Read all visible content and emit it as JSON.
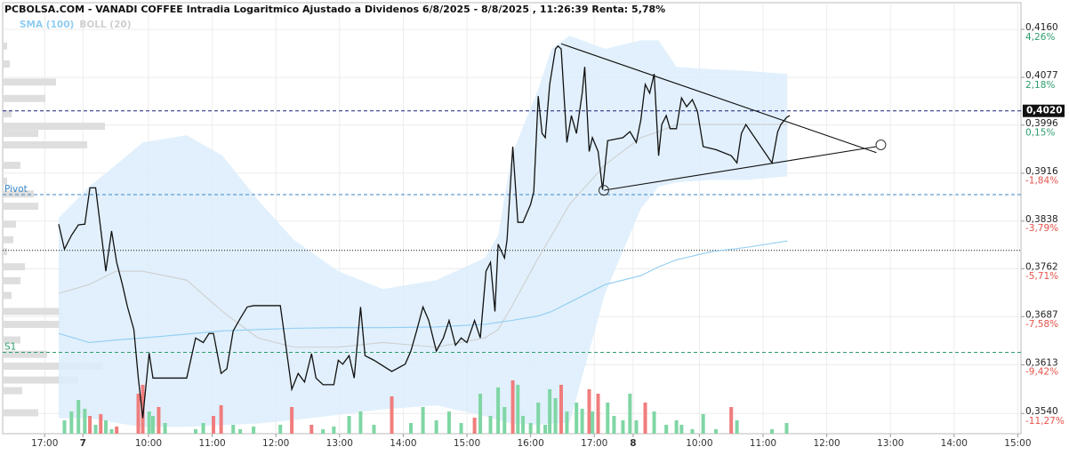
{
  "chart_data": {
    "type": "line",
    "title": "PCBOLSA.COM - VANADI COFFEE Intradia Logaritmico Ajustado a Dividenos 6/8/2025 - 8/8/2025 , 11:26:39 Renta: 5,78%",
    "log_scale": true,
    "grid": true,
    "xlim": [
      -0.66,
      15.33
    ],
    "xticks": [
      {
        "value": 0,
        "label": "17:00"
      },
      {
        "value": 0.6,
        "label": "7"
      },
      {
        "value": 1.63,
        "label": "10:00"
      },
      {
        "value": 2.63,
        "label": "11:00"
      },
      {
        "value": 3.63,
        "label": "12:00"
      },
      {
        "value": 4.63,
        "label": "13:00"
      },
      {
        "value": 5.63,
        "label": "14:00"
      },
      {
        "value": 6.63,
        "label": "15:00"
      },
      {
        "value": 7.63,
        "label": "16:00"
      },
      {
        "value": 8.63,
        "label": "17:00"
      },
      {
        "value": 9.24,
        "label": "8"
      },
      {
        "value": 10.28,
        "label": "10:00"
      },
      {
        "value": 11.28,
        "label": "11:00"
      },
      {
        "value": 12.28,
        "label": "12:00"
      },
      {
        "value": 13.28,
        "label": "13:00"
      },
      {
        "value": 14.28,
        "label": "14:00"
      },
      {
        "value": 15.28,
        "label": "15:00"
      }
    ],
    "ylim": [
      0.351,
      0.4207
    ],
    "yticks": [
      {
        "value": 0.416,
        "label": "0,4160"
      },
      {
        "value": 0.4077,
        "label": "0,4077"
      },
      {
        "value": 0.3996,
        "label": "0,3996"
      },
      {
        "value": 0.3916,
        "label": "0,3916"
      },
      {
        "value": 0.3838,
        "label": "0,3838"
      },
      {
        "value": 0.3762,
        "label": "0,3762"
      },
      {
        "value": 0.3687,
        "label": "0,3687"
      },
      {
        "value": 0.3613,
        "label": "0,3613"
      },
      {
        "value": 0.354,
        "label": "0,3540"
      }
    ],
    "y2lim": [
      -12.03,
      5.43
    ],
    "y2ticks": [
      {
        "value": 4.26,
        "label": "4,26%"
      },
      {
        "value": 2.18,
        "label": "2,18%"
      },
      {
        "value": 0.15,
        "label": "0,15%"
      },
      {
        "value": -1.84,
        "label": "-1,84%"
      },
      {
        "value": -3.79,
        "label": "-3,79%"
      },
      {
        "value": -5.71,
        "label": "-5,71%"
      },
      {
        "value": -7.58,
        "label": "-7,58%"
      },
      {
        "value": -9.42,
        "label": "-9,42%"
      },
      {
        "value": -11.27,
        "label": "-11,27%"
      }
    ],
    "y2_colors": {
      "up": "#2e9e6b",
      "down": "#e5534b"
    },
    "series": [
      {
        "color": "#111111",
        "x": [
          0.22,
          0.31,
          0.42,
          0.53,
          0.63,
          0.71,
          0.8,
          0.88,
          0.96,
          1.05,
          1.13,
          1.22,
          1.3,
          1.4,
          1.47,
          1.54,
          1.64,
          1.7,
          1.89,
          2.23,
          2.37,
          2.49,
          2.58,
          2.65,
          2.77,
          2.86,
          2.96,
          3.07,
          3.18,
          3.28,
          3.7,
          3.77,
          3.88,
          3.98,
          4.08,
          4.19,
          4.26,
          4.37,
          4.54,
          4.61,
          4.68,
          4.78,
          4.86,
          4.96,
          5.03,
          5.17,
          5.45,
          5.66,
          5.75,
          5.84,
          5.94,
          6.03,
          6.15,
          6.26,
          6.35,
          6.45,
          6.54,
          6.63,
          6.75,
          6.84,
          6.93,
          7.0,
          7.07,
          7.12,
          7.22,
          7.26,
          7.35,
          7.43,
          7.51,
          7.63,
          7.68,
          7.75,
          7.81,
          7.86,
          7.93,
          8.02,
          8.06,
          8.11,
          8.2,
          8.27,
          8.35,
          8.44,
          8.48,
          8.55,
          8.6,
          8.69,
          8.76,
          8.84,
          9.08,
          9.19,
          9.29,
          9.36,
          9.43,
          9.5,
          9.57,
          9.64,
          9.69,
          9.76,
          9.82,
          9.92,
          10.0,
          10.08,
          10.17,
          10.25,
          10.34,
          10.54,
          10.78,
          10.87,
          10.94,
          11.01,
          11.42,
          11.51,
          11.56,
          11.65,
          11.7
        ],
        "values": [
          0.3833,
          0.3793,
          0.3815,
          0.3832,
          0.3833,
          0.3892,
          0.3892,
          0.3825,
          0.3758,
          0.3822,
          0.3772,
          0.3737,
          0.3702,
          0.3667,
          0.3593,
          0.3533,
          0.3631,
          0.3593,
          0.3593,
          0.3593,
          0.3654,
          0.3647,
          0.3661,
          0.3661,
          0.36,
          0.3607,
          0.3665,
          0.3684,
          0.3702,
          0.3704,
          0.3704,
          0.3654,
          0.3576,
          0.36,
          0.3587,
          0.363,
          0.3593,
          0.3583,
          0.3583,
          0.362,
          0.3614,
          0.3627,
          0.3593,
          0.3702,
          0.3627,
          0.362,
          0.3603,
          0.3614,
          0.3634,
          0.3665,
          0.3702,
          0.3681,
          0.3634,
          0.3654,
          0.3681,
          0.3643,
          0.3654,
          0.3647,
          0.3681,
          0.3654,
          0.3758,
          0.3772,
          0.3695,
          0.3801,
          0.3779,
          0.3808,
          0.396,
          0.3836,
          0.3836,
          0.3865,
          0.3886,
          0.4045,
          0.3982,
          0.3975,
          0.4065,
          0.4126,
          0.4131,
          0.4126,
          0.3967,
          0.4012,
          0.3982,
          0.405,
          0.4095,
          0.3952,
          0.3975,
          0.3952,
          0.3889,
          0.397,
          0.3975,
          0.3985,
          0.3967,
          0.4004,
          0.4065,
          0.405,
          0.4083,
          0.3945,
          0.3997,
          0.4012,
          0.399,
          0.399,
          0.4042,
          0.4027,
          0.4039,
          0.4019,
          0.396,
          0.3955,
          0.3945,
          0.3933,
          0.3982,
          0.3997,
          0.3933,
          0.3985,
          0.3997,
          0.4009,
          0.4012
        ]
      },
      {
        "name": "SMA (100)",
        "color": "#8fcdf2",
        "x": [
          0.22,
          0.7,
          1.12,
          1.54,
          2.23,
          2.79,
          3.35,
          3.91,
          4.61,
          5.31,
          6.15,
          6.91,
          7.12,
          7.33,
          7.75,
          7.96,
          8.24,
          8.8,
          9.36,
          9.64,
          9.92,
          10.47,
          11.03,
          11.66
        ],
        "values": [
          0.3661,
          0.3647,
          0.3651,
          0.3654,
          0.366,
          0.3665,
          0.3667,
          0.3669,
          0.367,
          0.367,
          0.3671,
          0.3675,
          0.3678,
          0.3681,
          0.3688,
          0.3695,
          0.3709,
          0.3737,
          0.3751,
          0.3765,
          0.3776,
          0.3789,
          0.3796,
          0.3806
        ]
      },
      {
        "name": "BOLL (20)",
        "color": "#cfcfcf",
        "fill": "#dcedfb",
        "x": [
          0.22,
          0.7,
          1.12,
          1.54,
          2.23,
          2.79,
          3.35,
          3.91,
          4.61,
          5.31,
          6.15,
          6.91,
          7.12,
          7.33,
          7.75,
          7.96,
          8.24,
          8.8,
          9.36,
          9.64,
          9.92,
          10.47,
          11.03,
          11.66
        ],
        "values": [
          0.3723,
          0.3737,
          0.3758,
          0.3758,
          0.3744,
          0.3695,
          0.3654,
          0.364,
          0.364,
          0.3647,
          0.364,
          0.3654,
          0.3667,
          0.3702,
          0.3779,
          0.3815,
          0.3865,
          0.393,
          0.3975,
          0.3985,
          0.3997,
          0.3997,
          0.3997,
          0.3997
        ],
        "upper": [
          0.3843,
          0.3894,
          0.393,
          0.3967,
          0.3979,
          0.3945,
          0.3872,
          0.3808,
          0.3758,
          0.373,
          0.3744,
          0.3779,
          0.3815,
          0.3945,
          0.4057,
          0.4126,
          0.4149,
          0.4126,
          0.4141,
          0.4141,
          0.4095,
          0.4091,
          0.4088,
          0.4083
        ],
        "lower": [
          0.3533,
          0.3533,
          0.3526,
          0.352,
          0.352,
          0.3523,
          0.3525,
          0.353,
          0.3538,
          0.3546,
          0.3552,
          0.3536,
          0.353,
          0.3525,
          0.3523,
          0.3525,
          0.3526,
          0.3723,
          0.3858,
          0.3894,
          0.3901,
          0.3905,
          0.3905,
          0.3911
        ]
      }
    ],
    "reference_lines": [
      {
        "label": "Pivot",
        "value": 0.3881,
        "color": "#3a86c8",
        "style": "dashed"
      },
      {
        "label": "S1",
        "value": 0.3632,
        "color": "#2e9e6b",
        "style": "dashed"
      },
      {
        "label": "0,4020",
        "value": 0.402,
        "color": "#1a237e",
        "style": "dashed",
        "boxed": true
      },
      {
        "value": 0.3791,
        "color": "#111111",
        "style": "dotted"
      }
    ],
    "trendlines": [
      {
        "x": [
          8.11,
          13.06
        ],
        "y": [
          0.4135,
          0.395
        ]
      },
      {
        "x": [
          8.78,
          13.06
        ],
        "y": [
          0.3888,
          0.396
        ]
      }
    ],
    "markers": {
      "x": [
        8.78,
        13.13
      ],
      "y": [
        0.3888,
        0.3963
      ]
    },
    "volume": {
      "ylim": [
        0,
        100
      ],
      "x": [
        0.31,
        0.42,
        0.53,
        0.63,
        0.71,
        0.8,
        0.88,
        0.96,
        1.05,
        1.13,
        1.47,
        1.54,
        1.64,
        1.7,
        1.79,
        1.89,
        2.37,
        2.49,
        2.65,
        2.77,
        2.96,
        3.07,
        3.28,
        3.7,
        3.88,
        4.19,
        4.37,
        4.54,
        4.78,
        4.96,
        5.17,
        5.45,
        5.75,
        5.94,
        6.15,
        6.35,
        6.54,
        6.75,
        6.84,
        7.0,
        7.12,
        7.22,
        7.35,
        7.43,
        7.51,
        7.63,
        7.75,
        7.86,
        7.93,
        8.02,
        8.11,
        8.2,
        8.35,
        8.44,
        8.55,
        8.6,
        8.69,
        8.84,
        8.94,
        9.08,
        9.19,
        9.29,
        9.43,
        9.57,
        9.76,
        9.92,
        10.0,
        10.17,
        10.34,
        10.54,
        10.78,
        10.87,
        11.42,
        11.65
      ],
      "values": [
        15,
        25,
        38,
        28,
        20,
        10,
        22,
        15,
        5,
        8,
        45,
        55,
        25,
        20,
        30,
        12,
        5,
        12,
        20,
        32,
        10,
        5,
        8,
        10,
        30,
        10,
        5,
        8,
        20,
        25,
        10,
        42,
        12,
        30,
        15,
        25,
        12,
        18,
        45,
        20,
        52,
        30,
        60,
        55,
        20,
        12,
        35,
        10,
        50,
        40,
        55,
        25,
        35,
        28,
        50,
        25,
        45,
        35,
        20,
        15,
        45,
        15,
        35,
        25,
        10,
        15,
        10,
        5,
        22,
        5,
        30,
        15,
        5,
        12
      ],
      "colors": [
        "#7fd6a4",
        "#7fd6a4",
        "#7fd6a4",
        "#7fd6a4",
        "#f07d7d",
        "#7fd6a4",
        "#f07d7d",
        "#7fd6a4",
        "#7fd6a4",
        "#f07d7d",
        "#f07d7d",
        "#f07d7d",
        "#7fd6a4",
        "#7fd6a4",
        "#f07d7d",
        "#7fd6a4",
        "#7fd6a4",
        "#7fd6a4",
        "#f07d7d",
        "#f07d7d",
        "#7fd6a4",
        "#7fd6a4",
        "#7fd6a4",
        "#7fd6a4",
        "#f07d7d",
        "#f07d7d",
        "#7fd6a4",
        "#7fd6a4",
        "#7fd6a4",
        "#7fd6a4",
        "#7fd6a4",
        "#f07d7d",
        "#7fd6a4",
        "#7fd6a4",
        "#7fd6a4",
        "#7fd6a4",
        "#7fd6a4",
        "#f07d7d",
        "#7fd6a4",
        "#7fd6a4",
        "#7fd6a4",
        "#7fd6a4",
        "#f07d7d",
        "#7fd6a4",
        "#7fd6a4",
        "#7fd6a4",
        "#7fd6a4",
        "#7fd6a4",
        "#7fd6a4",
        "#7fd6a4",
        "#f07d7d",
        "#7fd6a4",
        "#7fd6a4",
        "#7fd6a4",
        "#f07d7d",
        "#7fd6a4",
        "#f07d7d",
        "#7fd6a4",
        "#7fd6a4",
        "#7fd6a4",
        "#7fd6a4",
        "#7fd6a4",
        "#f07d7d",
        "#7fd6a4",
        "#7fd6a4",
        "#7fd6a4",
        "#7fd6a4",
        "#7fd6a4",
        "#7fd6a4",
        "#7fd6a4",
        "#f07d7d",
        "#7fd6a4",
        "#7fd6a4",
        "#7fd6a4"
      ]
    },
    "volume_profile": {
      "xlim": [
        0,
        1145
      ],
      "color": "#dedede",
      "y": [
        0.4131,
        0.41,
        0.4069,
        0.4041,
        0.4015,
        0.3994,
        0.3982,
        0.3963,
        0.3929,
        0.3903,
        0.3882,
        0.3862,
        0.3833,
        0.3808,
        0.3789,
        0.3765,
        0.3743,
        0.372,
        0.3695,
        0.3675,
        0.3651,
        0.3629,
        0.3611,
        0.359,
        0.3574,
        0.3541
      ],
      "values": [
        5,
        8,
        60,
        48,
        10,
        115,
        40,
        95,
        20,
        5,
        35,
        40,
        15,
        12,
        5,
        25,
        20,
        10,
        65,
        65,
        20,
        50,
        112,
        85,
        22,
        40
      ]
    }
  }
}
